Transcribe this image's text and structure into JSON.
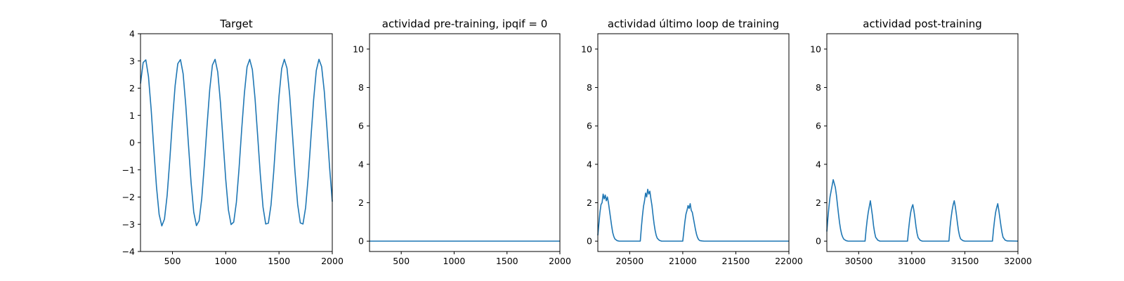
{
  "chart_data": [
    {
      "type": "line",
      "title": "Target",
      "xlim": [
        200,
        2000
      ],
      "ylim": [
        -4,
        4
      ],
      "xticks": [
        500,
        1000,
        1500,
        2000
      ],
      "yticks": [
        -4,
        -3,
        -2,
        -1,
        0,
        1,
        2,
        3,
        4
      ],
      "xtick_labels": [
        "500",
        "1000",
        "1500",
        "2000"
      ],
      "ytick_labels": [
        "−4",
        "−3",
        "−2",
        "−1",
        "0",
        "1",
        "2",
        "3",
        "4"
      ],
      "series": [
        {
          "color": "#1f77b4",
          "x": [
            200,
            225,
            250,
            275,
            300,
            325,
            350,
            375,
            400,
            425,
            450,
            475,
            500,
            525,
            550,
            575,
            600,
            625,
            650,
            675,
            700,
            725,
            750,
            775,
            800,
            825,
            850,
            875,
            900,
            925,
            950,
            975,
            1000,
            1025,
            1050,
            1075,
            1100,
            1125,
            1150,
            1175,
            1200,
            1225,
            1250,
            1275,
            1300,
            1325,
            1350,
            1375,
            1400,
            1425,
            1450,
            1475,
            1500,
            1525,
            1550,
            1575,
            1600,
            1625,
            1650,
            1675,
            1700,
            1725,
            1750,
            1775,
            1800,
            1825,
            1850,
            1875,
            1900,
            1925,
            1950,
            1975,
            2000
          ],
          "y": [
            2.17,
            2.94,
            3.04,
            2.42,
            1.22,
            -0.24,
            -1.62,
            -2.64,
            -3.06,
            -2.81,
            -1.94,
            -0.63,
            0.82,
            2.09,
            2.9,
            3.05,
            2.53,
            1.37,
            -0.07,
            -1.48,
            -2.56,
            -3.05,
            -2.87,
            -2.05,
            -0.78,
            0.65,
            1.96,
            2.85,
            3.06,
            2.59,
            1.48,
            0.06,
            -1.35,
            -2.47,
            -3.01,
            -2.92,
            -2.19,
            -0.95,
            0.5,
            1.81,
            2.78,
            3.06,
            2.68,
            1.62,
            0.23,
            -1.2,
            -2.37,
            -2.99,
            -2.96,
            -2.29,
            -1.09,
            0.35,
            1.7,
            2.72,
            3.06,
            2.73,
            1.75,
            0.37,
            -1.06,
            -2.27,
            -2.95,
            -2.99,
            -2.38,
            -1.23,
            0.2,
            1.58,
            2.65,
            3.06,
            2.79,
            1.88,
            0.53,
            -0.92,
            -2.17
          ]
        }
      ]
    },
    {
      "type": "line",
      "title": "actividad pre-training, ipqif = 0",
      "xlim": [
        200,
        2000
      ],
      "ylim": [
        -0.54,
        10.8
      ],
      "xticks": [
        500,
        1000,
        1500,
        2000
      ],
      "yticks": [
        0,
        2,
        4,
        6,
        8,
        10
      ],
      "xtick_labels": [
        "500",
        "1000",
        "1500",
        "2000"
      ],
      "ytick_labels": [
        "0",
        "2",
        "4",
        "6",
        "8",
        "10"
      ],
      "series": [
        {
          "color": "#1f77b4",
          "x": [
            200,
            2000
          ],
          "y": [
            0,
            0
          ]
        }
      ]
    },
    {
      "type": "line",
      "title": "actividad último loop de training",
      "xlim": [
        20200,
        22000
      ],
      "ylim": [
        -0.54,
        10.8
      ],
      "xticks": [
        20500,
        21000,
        21500,
        22000
      ],
      "yticks": [
        0,
        2,
        4,
        6,
        8,
        10
      ],
      "xtick_labels": [
        "20500",
        "21000",
        "21500",
        "22000"
      ],
      "ytick_labels": [
        "0",
        "2",
        "4",
        "6",
        "8",
        "10"
      ],
      "series": [
        {
          "color": "#1f77b4",
          "x": [
            20200,
            20210,
            20220,
            20230,
            20240,
            20250,
            20260,
            20270,
            20280,
            20290,
            20300,
            20310,
            20320,
            20330,
            20340,
            20350,
            20360,
            20380,
            20400,
            20600,
            20610,
            20620,
            20630,
            20640,
            20650,
            20660,
            20670,
            20680,
            20690,
            20700,
            20710,
            20720,
            20730,
            20740,
            20750,
            20760,
            20780,
            20800,
            21000,
            21010,
            21020,
            21030,
            21040,
            21050,
            21060,
            21070,
            21080,
            21090,
            21100,
            21110,
            21120,
            21130,
            21140,
            21150,
            21160,
            21180,
            21200,
            22000
          ],
          "y": [
            0.3,
            0.9,
            1.5,
            1.9,
            2.0,
            2.45,
            2.2,
            2.4,
            2.1,
            2.3,
            2.0,
            1.6,
            1.2,
            0.8,
            0.45,
            0.25,
            0.12,
            0.03,
            0.0,
            0.0,
            0.7,
            1.3,
            1.8,
            2.1,
            2.5,
            2.3,
            2.7,
            2.45,
            2.6,
            2.2,
            1.85,
            1.35,
            0.9,
            0.55,
            0.3,
            0.15,
            0.04,
            0.0,
            0.0,
            0.5,
            1.0,
            1.4,
            1.6,
            1.85,
            1.7,
            1.95,
            1.6,
            1.5,
            1.2,
            0.9,
            0.6,
            0.35,
            0.18,
            0.08,
            0.03,
            0.01,
            0.0,
            0.0
          ]
        }
      ]
    },
    {
      "type": "line",
      "title": "actividad post-training",
      "xlim": [
        30200,
        32000
      ],
      "ylim": [
        -0.54,
        10.8
      ],
      "xticks": [
        30500,
        31000,
        31500,
        32000
      ],
      "yticks": [
        0,
        2,
        4,
        6,
        8,
        10
      ],
      "xtick_labels": [
        "30500",
        "31000",
        "31500",
        "32000"
      ],
      "ytick_labels": [
        "0",
        "2",
        "4",
        "6",
        "8",
        "10"
      ],
      "series": [
        {
          "color": "#1f77b4",
          "x": [
            30200,
            30210,
            30220,
            30230,
            30240,
            30250,
            30260,
            30270,
            30280,
            30290,
            30300,
            30310,
            30320,
            30330,
            30340,
            30350,
            30360,
            30380,
            30400,
            30560,
            30570,
            30580,
            30590,
            30600,
            30610,
            30620,
            30630,
            30640,
            30650,
            30660,
            30680,
            30700,
            30960,
            30970,
            30980,
            30990,
            31000,
            31010,
            31020,
            31030,
            31040,
            31050,
            31060,
            31080,
            31100,
            31350,
            31360,
            31370,
            31380,
            31390,
            31400,
            31410,
            31420,
            31430,
            31440,
            31450,
            31460,
            31480,
            31500,
            31760,
            31770,
            31780,
            31790,
            31800,
            31810,
            31820,
            31830,
            31840,
            31850,
            31860,
            31880,
            31900,
            32000
          ],
          "y": [
            0.5,
            1.2,
            1.8,
            2.3,
            2.6,
            2.9,
            3.2,
            3.0,
            2.8,
            2.4,
            1.9,
            1.4,
            0.95,
            0.6,
            0.35,
            0.2,
            0.1,
            0.03,
            0.0,
            0.0,
            0.6,
            1.1,
            1.5,
            1.8,
            2.1,
            1.7,
            1.3,
            0.8,
            0.45,
            0.2,
            0.05,
            0.0,
            0.0,
            0.6,
            1.1,
            1.5,
            1.75,
            1.9,
            1.6,
            1.2,
            0.75,
            0.4,
            0.18,
            0.04,
            0.0,
            0.0,
            0.7,
            1.2,
            1.6,
            1.9,
            2.1,
            1.8,
            1.4,
            0.95,
            0.55,
            0.28,
            0.12,
            0.03,
            0.0,
            0.0,
            0.6,
            1.1,
            1.5,
            1.75,
            1.95,
            1.6,
            1.2,
            0.8,
            0.45,
            0.2,
            0.05,
            0.01,
            0.0
          ]
        }
      ]
    }
  ]
}
